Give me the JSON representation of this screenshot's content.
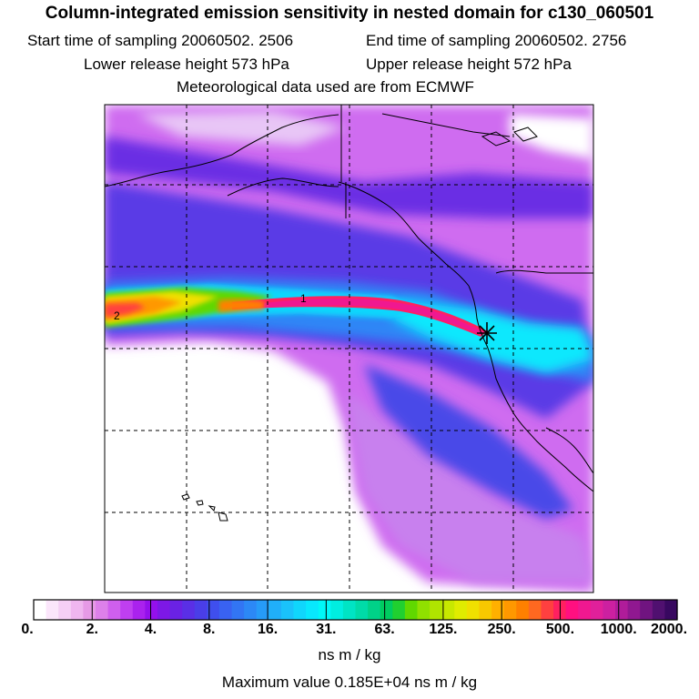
{
  "header": {
    "title": "Column-integrated emission sensitivity in nested domain for c130_060501",
    "start_time": "Start time of sampling 20060502.  2506",
    "end_time": "End time of sampling 20060502.  2756",
    "lower_height": "Lower release height  573 hPa",
    "upper_height": "Upper release height  572 hPa",
    "met_data": "Meteorological data used are from ECMWF"
  },
  "map": {
    "markers": [
      {
        "label": "1"
      },
      {
        "label": "2"
      }
    ],
    "release_marker": "asterisk-icon"
  },
  "colorbar": {
    "labels": [
      "0.",
      "2.",
      "4.",
      "8.",
      "16.",
      "31.",
      "63.",
      "125.",
      "250.",
      "500.",
      "1000.",
      "2000."
    ],
    "colors": [
      "#ffffff",
      "#fbe6fb",
      "#f5cff5",
      "#efb6ef",
      "#e69ae6",
      "#dd80ea",
      "#cf5fee",
      "#bf3ff0",
      "#aa22ee",
      "#9410ec",
      "#7d18e6",
      "#6a22e4",
      "#5a2fe6",
      "#4a3ee8",
      "#3f4fee",
      "#3962f2",
      "#3275f4",
      "#2c88f6",
      "#269bf8",
      "#20aff9",
      "#1ac2fb",
      "#10d6fc",
      "#08e8fd",
      "#00f8f8",
      "#00eee0",
      "#00e4c4",
      "#00dba8",
      "#00d288",
      "#00cc60",
      "#20d030",
      "#60d800",
      "#90e000",
      "#b0e400",
      "#c8e800",
      "#e0ec00",
      "#f0e000",
      "#f8c800",
      "#ffb000",
      "#ff9800",
      "#ff8000",
      "#ff6820",
      "#ff4040",
      "#ff2060",
      "#ff1080",
      "#f01890",
      "#e0209a",
      "#cc20a0",
      "#b01c9a",
      "#901890",
      "#701480",
      "#501070",
      "#380860"
    ],
    "unit": "ns m / kg",
    "max_value": "Maximum value  0.185E+04 ns m / kg"
  }
}
